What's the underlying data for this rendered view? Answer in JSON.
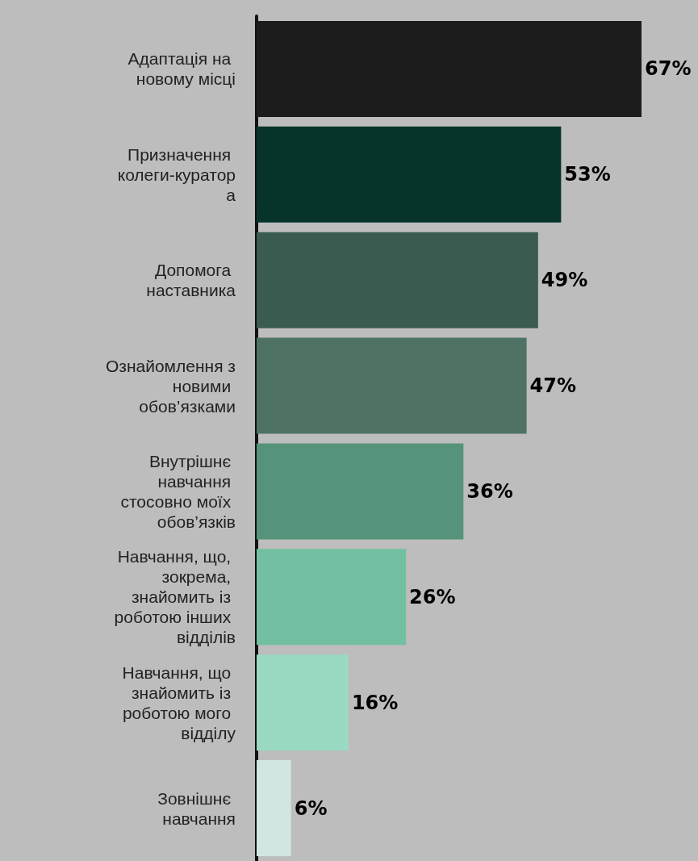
{
  "chart_data": {
    "type": "bar",
    "orientation": "horizontal",
    "categories": [
      "Адаптація на новому місці",
      "Призначення колеги-куратора",
      "Допомога наставника",
      "Ознайомлення з новими обов’язками",
      "Внутрішнє навчання стосовно моїх обов’язків",
      "Навчання, що, зокрема, знайомить із роботою інших відділів",
      "Навчання, що знайомить із роботою мого відділу",
      "Зовнішнє навчання"
    ],
    "values": [
      67,
      53,
      49,
      47,
      36,
      26,
      16,
      6
    ],
    "colors": [
      "#1c1c1c",
      "#06342b",
      "#3a5c50",
      "#4e7365",
      "#55937b",
      "#72bfa1",
      "#9ad9c2",
      "#d1e5e1"
    ],
    "value_labels": [
      "67%",
      "53%",
      "49%",
      "47%",
      "36%",
      "26%",
      "16%",
      "6%"
    ]
  }
}
